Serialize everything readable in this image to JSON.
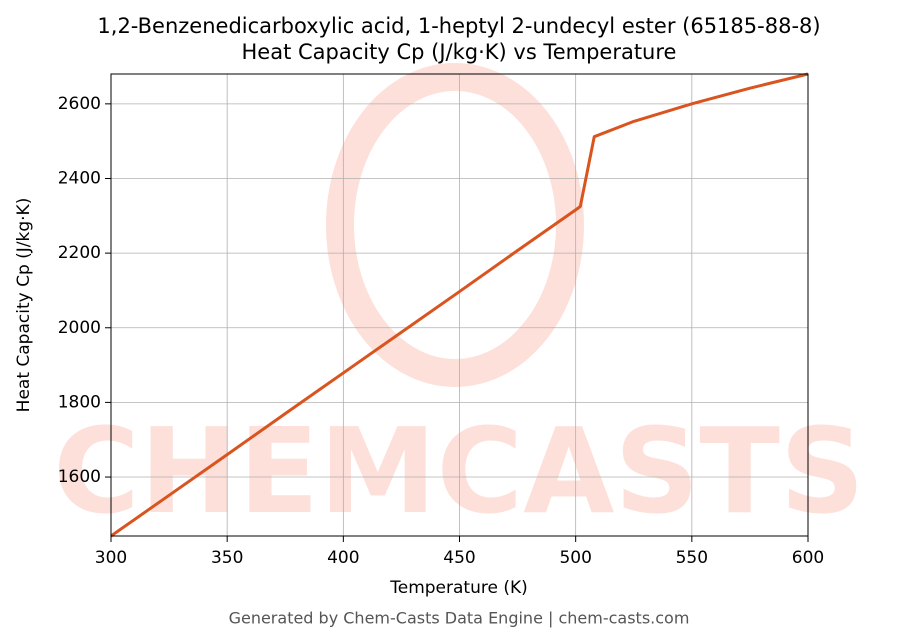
{
  "chart_data": {
    "type": "line",
    "title": "1,2-Benzenedicarboxylic acid, 1-heptyl 2-undecyl ester (65185-88-8)",
    "subtitle": "Heat Capacity Cp (J/kg·K) vs Temperature",
    "x_label": "Temperature (K)",
    "y_label": "Heat Capacity Cp (J/kg·K)",
    "footer": "Generated by Chem-Casts Data Engine | chem-casts.com",
    "watermark": "CHEMCASTS",
    "x": [
      300,
      325,
      350,
      375,
      400,
      425,
      450,
      475,
      500,
      502,
      508,
      525,
      550,
      575,
      600
    ],
    "series": [
      {
        "name": "Cp",
        "color": "#d9541e",
        "values": [
          1442,
          1551,
          1660,
          1770,
          1879,
          1988,
          2097,
          2207,
          2316,
          2325,
          2512,
          2553,
          2600,
          2642,
          2680
        ]
      }
    ],
    "xlim": [
      300,
      600
    ],
    "xticks": [
      300,
      350,
      400,
      450,
      500,
      550,
      600
    ],
    "ylim": [
      1442,
      2680
    ],
    "yticks": [
      1600,
      1800,
      2000,
      2200,
      2400,
      2600
    ],
    "grid": true
  }
}
